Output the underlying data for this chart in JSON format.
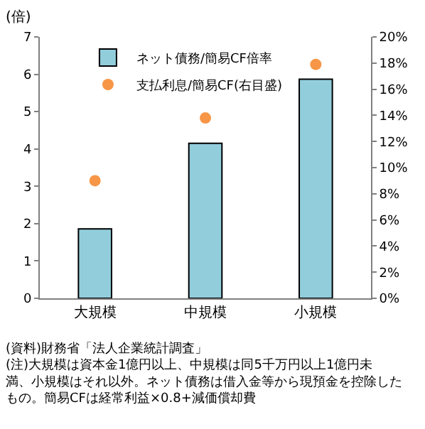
{
  "chart_data": {
    "type": "bar",
    "ylabel": "(倍)",
    "categories": [
      "大規模",
      "中規模",
      "小規模"
    ],
    "series": [
      {
        "name": "ネット債務/簡易CF倍率",
        "color": "#92cddc",
        "values": [
          1.86,
          4.15,
          5.87
        ]
      },
      {
        "name": "支払利息/簡易CF(右目盛)",
        "type": "scatter",
        "axis": "y2",
        "marker": "circle",
        "color": "#f79646",
        "values": [
          9.0,
          13.8,
          17.9
        ]
      }
    ],
    "ylim": [
      0,
      7
    ],
    "yticks": [
      0,
      1,
      2,
      3,
      4,
      5,
      6,
      7
    ],
    "y2lim": [
      0,
      20
    ],
    "y2ticks": [
      {
        "value": 0,
        "label": "0%"
      },
      {
        "value": 2,
        "label": "2%"
      },
      {
        "value": 4,
        "label": "4%"
      },
      {
        "value": 6,
        "label": "6%"
      },
      {
        "value": 8,
        "label": "8%"
      },
      {
        "value": 10,
        "label": "10%"
      },
      {
        "value": 12,
        "label": "12%"
      },
      {
        "value": 14,
        "label": "14%"
      },
      {
        "value": 16,
        "label": "16%"
      },
      {
        "value": 18,
        "label": "18%"
      },
      {
        "value": 20,
        "label": "20%"
      }
    ],
    "legend": "top left",
    "annotations": [
      "(資料)財務省「法人企業統計調査」",
      "(注)大規模は資本金1億円以上、中規模は同5千万円以上1億円未満、小規模はそれ以外。ネット債務は借入金等から現預金を控除したもの。簡易CFは経常利益×0.8+減価償却費"
    ]
  }
}
